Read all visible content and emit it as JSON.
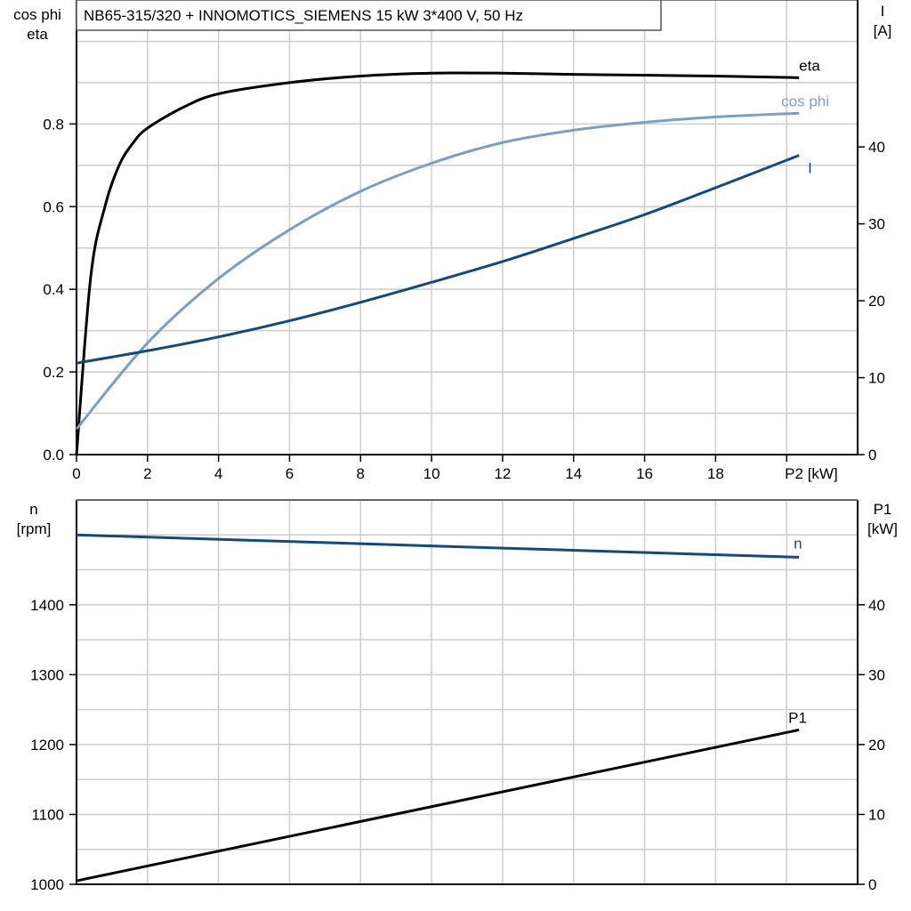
{
  "title": "NB65-315/320 + INNOMOTICS_SIEMENS   15 kW   3*400 V, 50 Hz",
  "colors": {
    "eta": "#000000",
    "cos_phi": "#7a9fc2",
    "I": "#124a80",
    "n": "#124a80",
    "P1": "#000000",
    "grid": "#cccccc"
  },
  "chart_data": [
    {
      "type": "line",
      "xlabel": "P2 [kW]",
      "xlim": [
        0,
        22
      ],
      "x_ticks": [
        "0",
        "2",
        "4",
        "6",
        "8",
        "10",
        "12",
        "14",
        "16",
        "18"
      ],
      "ylabel_left": [
        "cos phi",
        "eta"
      ],
      "ylim_left": [
        0,
        1.1
      ],
      "y_ticks_left": [
        "0.0",
        "0.2",
        "0.4",
        "0.6",
        "0.8"
      ],
      "ylabel_right": [
        "I",
        "[A]"
      ],
      "ylim_right": [
        0,
        59.1
      ],
      "y_ticks_right": [
        "0",
        "10",
        "20",
        "30",
        "40"
      ],
      "grid": true,
      "series": [
        {
          "name": "eta",
          "axis": "left",
          "x": [
            0,
            0.4,
            0.8,
            1.2,
            1.6,
            2,
            3,
            4,
            6,
            8,
            10,
            12,
            14,
            16,
            18,
            20.35
          ],
          "y": [
            0,
            0.43,
            0.6,
            0.7,
            0.755,
            0.79,
            0.84,
            0.873,
            0.9,
            0.916,
            0.923,
            0.923,
            0.92,
            0.918,
            0.916,
            0.912
          ]
        },
        {
          "name": "cos phi",
          "axis": "left",
          "x": [
            0,
            2,
            4,
            6,
            8,
            10,
            12,
            14,
            16,
            18,
            20.35
          ],
          "y": [
            0.062,
            0.27,
            0.426,
            0.544,
            0.637,
            0.705,
            0.755,
            0.785,
            0.804,
            0.817,
            0.826
          ]
        },
        {
          "name": "I",
          "axis": "right",
          "x": [
            0,
            2,
            4,
            6,
            8,
            10,
            12,
            14,
            16,
            18,
            20.35
          ],
          "y": [
            11.9,
            13.5,
            15.3,
            17.4,
            19.8,
            22.4,
            25.1,
            28.1,
            31.2,
            34.7,
            38.9
          ]
        }
      ]
    },
    {
      "type": "line",
      "xlim": [
        0,
        22
      ],
      "ylabel_left": [
        "n",
        "[rpm]"
      ],
      "ylim_left": [
        1000,
        1550
      ],
      "y_ticks_left": [
        "1000",
        "1100",
        "1200",
        "1300",
        "1400"
      ],
      "ylabel_right": [
        "P1",
        "[kW]"
      ],
      "ylim_right": [
        0,
        55
      ],
      "y_ticks_right": [
        "0",
        "10",
        "20",
        "30",
        "40"
      ],
      "grid": true,
      "series": [
        {
          "name": "n",
          "axis": "left",
          "x": [
            0,
            20.35
          ],
          "y": [
            1500,
            1468
          ]
        },
        {
          "name": "P1",
          "axis": "right",
          "x": [
            0,
            20.35
          ],
          "y": [
            0.5,
            22.1
          ]
        }
      ]
    }
  ]
}
